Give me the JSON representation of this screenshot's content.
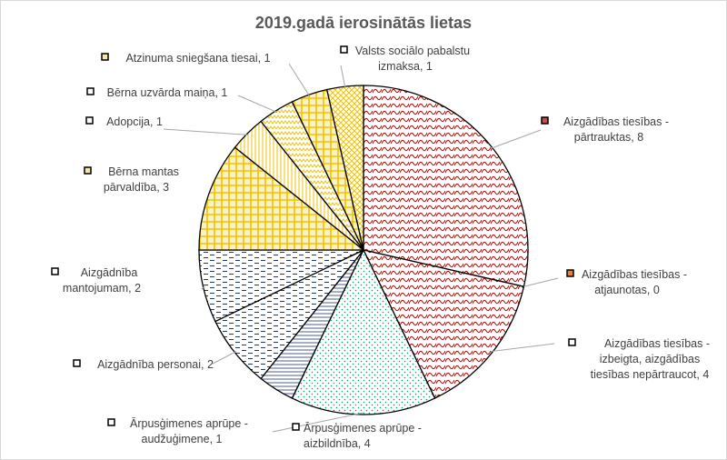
{
  "chart_data": {
    "type": "pie",
    "title": "2019.gadā ierosinātās lietas",
    "slices": [
      {
        "label": "Aizgādības tiesības - pārtrauktas",
        "value": 8,
        "color": "#c00000",
        "pattern": "wave"
      },
      {
        "label": "Aizgādības tiesības - atjaunotas",
        "value": 0,
        "color": "#ed7d31",
        "pattern": "none"
      },
      {
        "label": "Aizgādības tiesības - izbeigta, aizgādības tiesības nepārtraucot",
        "value": 4,
        "color": "#c00000",
        "pattern": "wave"
      },
      {
        "label": "Ārpusģimenes aprūpe - aizbildnība",
        "value": 4,
        "color": "#00a36c",
        "pattern": "dots"
      },
      {
        "label": "Ārpusģimenes aprūpe - audžuģimene",
        "value": 1,
        "color": "#1f3864",
        "pattern": "hlines"
      },
      {
        "label": "Aizgādnība personai",
        "value": 2,
        "color": "#1f3864",
        "pattern": "dashes"
      },
      {
        "label": "Aizgādnība mantojumam",
        "value": 2,
        "color": "#1f3864",
        "pattern": "dashes"
      },
      {
        "label": "Bērna mantas pārvaldība",
        "value": 3,
        "color": "#f2c200",
        "pattern": "grid"
      },
      {
        "label": "Adopcija",
        "value": 1,
        "color": "#f2c200",
        "pattern": "vlines"
      },
      {
        "label": "Bērna uzvārda maiņa",
        "value": 1,
        "color": "#f2c200",
        "pattern": "zigzag"
      },
      {
        "label": "Atzinuma sniegšana tiesai",
        "value": 1,
        "color": "#f2c200",
        "pattern": "grid"
      },
      {
        "label": "Valsts sociālo pabalstu izmaksa",
        "value": 1,
        "color": "#f2c200",
        "pattern": "diag"
      }
    ],
    "data_labels": [
      {
        "lines": [
          "Aizgādības tiesības -",
          "pārtrauktas, 8"
        ],
        "marker_color": "#c0504d"
      },
      {
        "lines": [
          "Aizgādības tiesības -",
          "atjaunotas, 0"
        ],
        "marker_color": "#ed7d31"
      },
      {
        "lines": [
          "Aizgādības tiesības -",
          "izbeigta, aizgādības",
          "tiesības nepārtraucot, 4"
        ],
        "marker_color": "#ffffff"
      },
      {
        "lines": [
          "Ārpusģimenes aprūpe -",
          "aizbildnība, 4"
        ],
        "marker_color": "#ffffff"
      },
      {
        "lines": [
          "Ārpusģimenes aprūpe -",
          "audžuģimene, 1"
        ],
        "marker_color": "#ffffff"
      },
      {
        "lines": [
          "Aizgādnība personai, 2"
        ],
        "marker_color": "#ffffff"
      },
      {
        "lines": [
          "Aizgādnība",
          "mantojumam, 2"
        ],
        "marker_color": "#ffffff"
      },
      {
        "lines": [
          "Bērna mantas",
          "pārvaldība, 3"
        ],
        "marker_color": "#f5e6a8"
      },
      {
        "lines": [
          "Adopcija, 1"
        ],
        "marker_color": "#ffffff"
      },
      {
        "lines": [
          "Bērna uzvārda maiņa, 1"
        ],
        "marker_color": "#ffffff"
      },
      {
        "lines": [
          "Atzinuma sniegšana tiesai, 1"
        ],
        "marker_color": "#f5e6a8"
      },
      {
        "lines": [
          "Valsts sociālo pabalstu",
          "izmaksa, 1"
        ],
        "marker_color": "#ffffff"
      }
    ]
  }
}
